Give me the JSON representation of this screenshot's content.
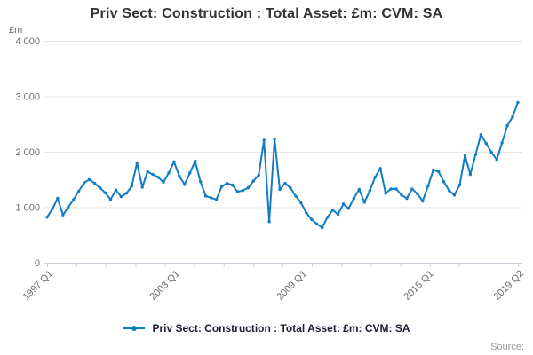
{
  "title": "Priv Sect: Construction : Total Asset: £m: CVM: SA",
  "source_label": "Source:",
  "legend": {
    "label": "Priv Sect: Construction : Total Asset: £m: CVM: SA",
    "color": "#127dc3"
  },
  "chart_data": {
    "type": "line",
    "title": "Priv Sect: Construction : Total Asset: £m: CVM: SA",
    "unit_label": "£m",
    "grid": "horizontal-only",
    "legend_position": "bottom-center",
    "series_color": "#127dc3",
    "axis_color": "#ccd1e0",
    "grid_color": "#e6e6e6",
    "tick_label_color": "#6e6e6e",
    "ylim": [
      0,
      4000
    ],
    "y_tick_values": [
      4000,
      3000,
      2000,
      1000,
      0
    ],
    "y_tick_labels": [
      "4 000",
      "3 000",
      "2 000",
      "1 000",
      "0"
    ],
    "x_start_label": "1997 Q1",
    "x_end_label": "2019 Q2",
    "x_tick_labels": [
      "1997 Q1",
      "2003 Q1",
      "2009 Q1",
      "2015 Q1",
      "2019 Q2"
    ],
    "x_tick_indices": [
      0,
      24,
      48,
      72,
      89
    ],
    "minor_x_tick_count": 17,
    "series": [
      {
        "name": "Priv Sect: Construction : Total Asset: £m: CVM: SA",
        "frequency": "quarterly",
        "values": [
          820,
          970,
          1160,
          860,
          1000,
          1140,
          1290,
          1440,
          1500,
          1430,
          1350,
          1260,
          1140,
          1310,
          1190,
          1250,
          1380,
          1800,
          1360,
          1640,
          1590,
          1540,
          1450,
          1620,
          1820,
          1560,
          1410,
          1620,
          1830,
          1460,
          1200,
          1170,
          1140,
          1370,
          1430,
          1400,
          1280,
          1300,
          1350,
          1470,
          1580,
          2210,
          740,
          2230,
          1320,
          1430,
          1350,
          1200,
          1080,
          900,
          780,
          700,
          630,
          820,
          950,
          870,
          1060,
          980,
          1160,
          1320,
          1090,
          1300,
          1540,
          1700,
          1250,
          1330,
          1330,
          1220,
          1160,
          1330,
          1240,
          1110,
          1380,
          1670,
          1640,
          1460,
          1300,
          1220,
          1400,
          1940,
          1590,
          1950,
          2310,
          2150,
          1990,
          1860,
          2160,
          2470,
          2630,
          2890
        ]
      }
    ]
  }
}
